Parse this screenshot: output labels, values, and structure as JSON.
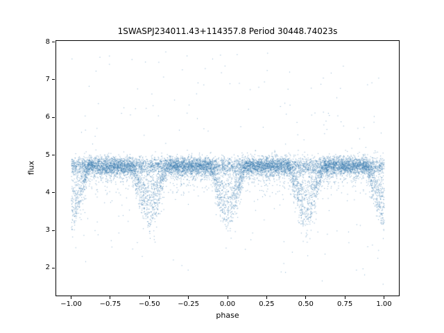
{
  "chart_data": {
    "type": "scatter",
    "title": "1SWASPJ234011.43+114357.8 Period 30448.74023s",
    "xlabel": "phase",
    "ylabel": "flux",
    "xlim": [
      -1.1,
      1.1
    ],
    "ylim": [
      1.25,
      8.05
    ],
    "grid": false,
    "legend": "none",
    "marker_color": "#3779ae",
    "marker_alpha": 0.65,
    "x_ticks": [
      {
        "v": -1.0,
        "label": "−1.00"
      },
      {
        "v": -0.75,
        "label": "−0.75"
      },
      {
        "v": -0.5,
        "label": "−0.50"
      },
      {
        "v": -0.25,
        "label": "−0.25"
      },
      {
        "v": 0.0,
        "label": "0.00"
      },
      {
        "v": 0.25,
        "label": "0.25"
      },
      {
        "v": 0.5,
        "label": "0.50"
      },
      {
        "v": 0.75,
        "label": "0.75"
      },
      {
        "v": 1.0,
        "label": "1.00"
      }
    ],
    "y_ticks": [
      {
        "v": 2,
        "label": "2"
      },
      {
        "v": 3,
        "label": "3"
      },
      {
        "v": 4,
        "label": "4"
      },
      {
        "v": 5,
        "label": "5"
      },
      {
        "v": 6,
        "label": "6"
      },
      {
        "v": 7,
        "label": "7"
      },
      {
        "v": 8,
        "label": "8"
      }
    ],
    "description": "Phase-folded light curve of an eclipsing binary: dense baseline band at flux ≈ 4.7 spanning phase −1.0 to 1.0, with broad eclipse dips down to flux ≈ 3.0 centered at phases −1.0, −0.5, 0.0, 0.5 and 1.0, plus sparse outlier points between flux ≈ 1.6 and ≈ 7.7",
    "generator": {
      "seed": 42,
      "n_points": 12000,
      "baseline_flux": 4.72,
      "baseline_sigma": 0.12,
      "below_band_fuzz_fraction": 0.12,
      "below_band_fuzz_max": 0.9,
      "eclipse_phases": [
        -1.0,
        -0.5,
        0.0,
        0.5,
        1.0
      ],
      "eclipse_half_width": 0.11,
      "eclipse_depth": 1.65,
      "eclipse_point_fraction": 0.55,
      "outlier_fraction": 0.018,
      "outlier_min": 1.55,
      "outlier_max": 7.75
    }
  }
}
